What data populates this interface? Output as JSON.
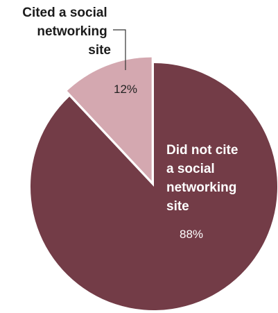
{
  "chart_data": {
    "type": "pie",
    "title": "",
    "slices": [
      {
        "label_lines": [
          "Cited a social",
          "networking",
          "site"
        ],
        "value": 12,
        "value_label": "12%",
        "color": "#d4a8b0",
        "exploded": true
      },
      {
        "label_lines": [
          "Did not cite",
          "a social",
          "networking",
          "site"
        ],
        "value": 88,
        "value_label": "88%",
        "color": "#733c47",
        "exploded": false
      }
    ],
    "legend": "none"
  }
}
